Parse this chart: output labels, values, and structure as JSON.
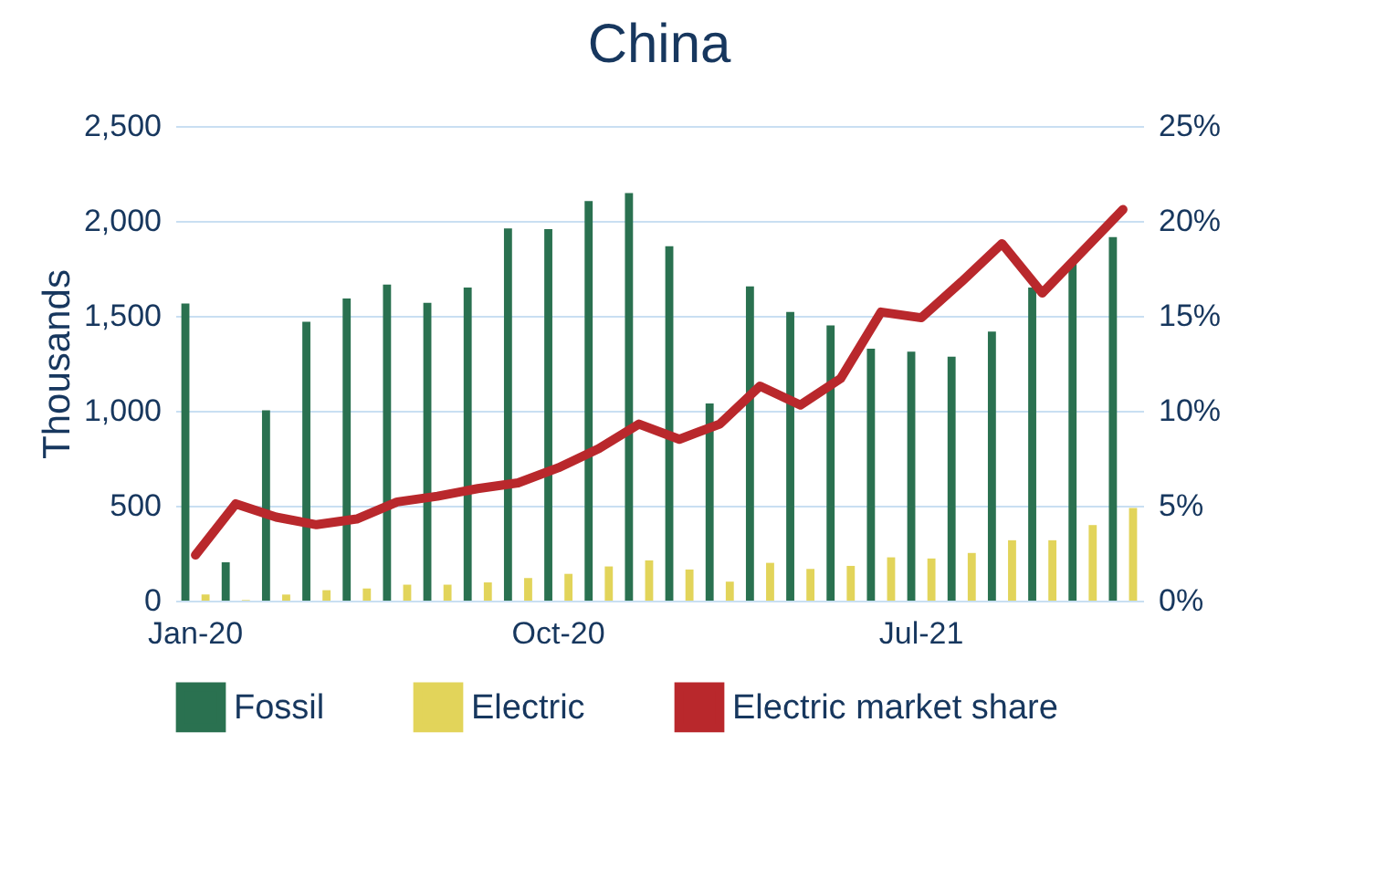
{
  "chart_data": {
    "type": "bar",
    "title": "China",
    "ylabel": "Thousands",
    "categories": [
      "Jan-20",
      null,
      null,
      null,
      null,
      null,
      null,
      null,
      null,
      "Oct-20",
      null,
      null,
      null,
      null,
      null,
      null,
      null,
      null,
      "Jul-21",
      null,
      null,
      null,
      null,
      null
    ],
    "series": [
      {
        "name": "Fossil",
        "color": "#2a7150",
        "values": [
          1565,
          202,
          1003,
          1469,
          1591,
          1665,
          1568,
          1649,
          1960,
          1957,
          2105,
          2147,
          1867,
          1038,
          1655,
          1520,
          1449,
          1327,
          1311,
          1285,
          1417,
          1649,
          1777,
          1915
        ]
      },
      {
        "name": "Electric",
        "color": "#e2d45a",
        "values": [
          32,
          3,
          32,
          55,
          64,
          84,
          84,
          96,
          119,
          141,
          180,
          212,
          164,
          100,
          199,
          167,
          183,
          228,
          222,
          251,
          318,
          318,
          398,
          488
        ]
      },
      {
        "name": "Electric market share",
        "type": "line",
        "axis": "y2",
        "color": "#b9282c",
        "values": [
          2.4,
          5.1,
          4.4,
          4.0,
          4.3,
          5.2,
          5.5,
          5.9,
          6.2,
          7.0,
          8.0,
          9.3,
          8.5,
          9.3,
          11.3,
          10.3,
          11.7,
          15.2,
          14.9,
          16.8,
          18.8,
          16.2,
          18.4,
          20.6
        ]
      }
    ],
    "ylim": [
      0,
      2500
    ],
    "yticks": [
      0,
      500,
      {
        "value": 1000,
        "label": "1,000"
      },
      {
        "value": 1500,
        "label": "1,500"
      },
      {
        "value": 2000,
        "label": "2,000"
      },
      {
        "value": 2500,
        "label": "2,500"
      }
    ],
    "y2lim": [
      0,
      25
    ],
    "y2ticks": [
      {
        "value": 0,
        "label": "0%"
      },
      {
        "value": 5,
        "label": "5%"
      },
      {
        "value": 10,
        "label": "10%"
      },
      {
        "value": 15,
        "label": "15%"
      },
      {
        "value": 20,
        "label": "20%"
      },
      {
        "value": 25,
        "label": "25%"
      }
    ],
    "grid": true,
    "legend": "bottom"
  }
}
